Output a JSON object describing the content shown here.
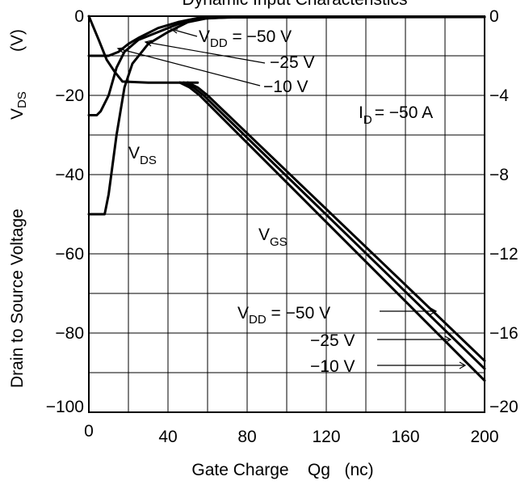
{
  "chart_data": {
    "type": "line",
    "title": "Dynamic Input Characteristics",
    "xlabel": "Gate Charge    Qg   (nc)",
    "ylabel_left": "Drain to Source Voltage",
    "ylabel_left_symbol": "V",
    "ylabel_left_symbol_sub": "DS",
    "ylabel_left_unit": "(V)",
    "xlim": [
      0,
      200
    ],
    "ylim_left": [
      -100,
      0
    ],
    "ylim_right": [
      -20,
      0
    ],
    "x_ticks": [
      "0",
      "40",
      "80",
      "120",
      "160",
      "200"
    ],
    "y_ticks_left": [
      "0",
      "−20",
      "−40",
      "−60",
      "−80",
      "−100"
    ],
    "y_ticks_right": [
      "0",
      "−4",
      "−8",
      "−12",
      "−16",
      "−20"
    ],
    "grid": true,
    "condition": {
      "main": "I",
      "sub": "D",
      "rest": "= −50 A"
    },
    "vds_label": {
      "main": "V",
      "sub": "DS"
    },
    "vgs_label": {
      "main": "V",
      "sub": "GS"
    },
    "series": [
      {
        "group": "VDS",
        "vdd": "−50 V",
        "axis": "left",
        "x": [
          0,
          8,
          10,
          14,
          18,
          22,
          30,
          40,
          50,
          60,
          80,
          200
        ],
        "y": [
          -50,
          -50,
          -45,
          -30,
          -18,
          -12,
          -7,
          -4,
          -1.5,
          -0.5,
          -0.2,
          -0.2
        ]
      },
      {
        "group": "VDS",
        "vdd": "−25 V",
        "axis": "left",
        "x": [
          0,
          4,
          6,
          10,
          14,
          18,
          25,
          35,
          45,
          55,
          70,
          200
        ],
        "y": [
          -25,
          -25,
          -24,
          -20,
          -13,
          -9,
          -6,
          -4,
          -2,
          -0.7,
          -0.3,
          -0.2
        ]
      },
      {
        "group": "VDS",
        "vdd": "−10 V",
        "axis": "left",
        "x": [
          0,
          10,
          15,
          20,
          25,
          35,
          45,
          55,
          65,
          200
        ],
        "y": [
          -10,
          -10,
          -9,
          -7,
          -5.5,
          -3,
          -1.5,
          -0.5,
          -0.2,
          -0.2
        ]
      },
      {
        "group": "VDS",
        "vdd": "",
        "axis": "left",
        "x": [
          0,
          5,
          9,
          13,
          17,
          30,
          50,
          55
        ],
        "y": [
          0,
          -6,
          -11,
          -14,
          -16.5,
          -16.8,
          -16.8,
          -16.8
        ]
      },
      {
        "group": "VGS",
        "vdd": "−50 V",
        "axis": "right",
        "x": [
          50,
          55,
          60,
          200
        ],
        "y": [
          -3.35,
          -3.6,
          -4.0,
          -17.4
        ]
      },
      {
        "group": "VGS",
        "vdd": "−25 V",
        "axis": "right",
        "x": [
          48,
          53,
          58,
          200
        ],
        "y": [
          -3.35,
          -3.6,
          -4.0,
          -17.8
        ]
      },
      {
        "group": "VGS",
        "vdd": "−10 V",
        "axis": "right",
        "x": [
          46,
          51,
          56,
          200
        ],
        "y": [
          -3.35,
          -3.6,
          -4.0,
          -18.4
        ]
      }
    ],
    "annotations_top": [
      "V",
      "DD",
      " = −50 V",
      "−25 V",
      "−10 V"
    ],
    "annotations_bottom": [
      "V",
      "DD",
      " = −50 V",
      "−25 V",
      "−10 V"
    ]
  }
}
